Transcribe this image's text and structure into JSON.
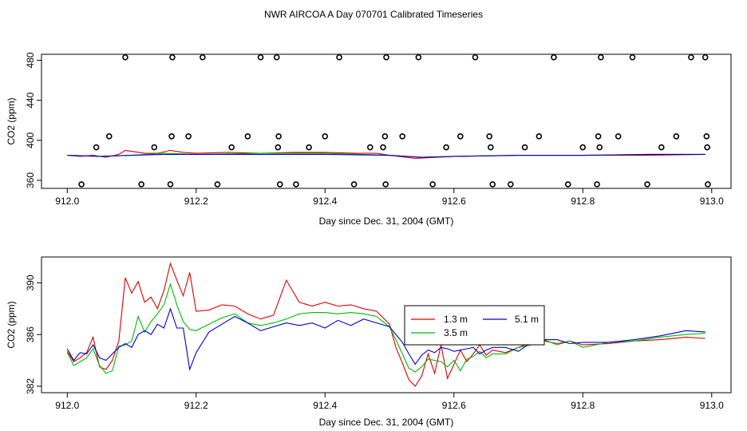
{
  "title": "NWR AIRCOA A  Day 070701  Calibrated Timeseries",
  "colors": {
    "red": "#dd0000",
    "green": "#00bb00",
    "blue": "#0000cc",
    "axis": "#000000"
  },
  "chart_data": [
    {
      "type": "scatter+line",
      "xlabel": "Day since Dec. 31, 2004 (GMT)",
      "ylabel": "CO2 (ppm)",
      "xlim": [
        911.96,
        913.03
      ],
      "ylim": [
        352,
        486
      ],
      "xticks": [
        "912.0",
        "912.2",
        "912.4",
        "912.6",
        "912.8",
        "913.0"
      ],
      "yticks": [
        "360",
        "400",
        "440",
        "480"
      ],
      "points_x": [
        912.022,
        912.045,
        912.065,
        912.09,
        912.115,
        912.135,
        912.16,
        912.162,
        912.163,
        912.188,
        912.21,
        912.233,
        912.255,
        912.28,
        912.3,
        912.325,
        912.327,
        912.328,
        912.33,
        912.355,
        912.375,
        912.4,
        912.422,
        912.445,
        912.47,
        912.49,
        912.493,
        912.494,
        912.495,
        912.52,
        912.545,
        912.567,
        912.588,
        912.61,
        912.633,
        912.655,
        912.657,
        912.66,
        912.688,
        912.71,
        912.732,
        912.755,
        912.777,
        912.8,
        912.822,
        912.824,
        912.826,
        912.828,
        912.855,
        912.877,
        912.9,
        912.922,
        912.945,
        912.968,
        912.99,
        912.992,
        912.993,
        912.994
      ],
      "points_y": [
        356,
        393,
        404,
        483,
        356,
        393,
        356,
        404,
        483,
        404,
        483,
        356,
        393,
        404,
        483,
        483,
        393,
        404,
        356,
        356,
        393,
        404,
        483,
        356,
        393,
        393,
        404,
        356,
        483,
        404,
        483,
        356,
        393,
        404,
        483,
        404,
        393,
        356,
        356,
        393,
        404,
        483,
        356,
        393,
        356,
        404,
        393,
        483,
        404,
        483,
        356,
        393,
        404,
        483,
        483,
        404,
        393,
        356
      ],
      "series": [
        {
          "name": "1.3 m",
          "color": "#dd0000",
          "x": [
            912.0,
            912.02,
            912.04,
            912.06,
            912.08,
            912.09,
            912.1,
            912.12,
            912.14,
            912.16,
            912.18,
            912.2,
            912.25,
            912.3,
            912.35,
            912.4,
            912.45,
            912.48,
            912.5,
            912.54,
            912.6,
            912.7,
            912.8,
            912.9,
            912.99
          ],
          "values": [
            385,
            384,
            385,
            383,
            386,
            390,
            389,
            387,
            387,
            390,
            388,
            387,
            388,
            387,
            388,
            388,
            387,
            387,
            385,
            382,
            384,
            385,
            385,
            385,
            386
          ]
        },
        {
          "name": "3.5 m",
          "color": "#00bb00",
          "x": [
            912.0,
            912.05,
            912.1,
            912.15,
            912.2,
            912.3,
            912.4,
            912.5,
            912.55,
            912.6,
            912.7,
            912.8,
            912.9,
            912.99
          ],
          "values": [
            385,
            384,
            385,
            387,
            386,
            387,
            387,
            385,
            383,
            384,
            385,
            385,
            386,
            386
          ]
        },
        {
          "name": "5.1 m",
          "color": "#0000cc",
          "x": [
            912.0,
            912.05,
            912.1,
            912.15,
            912.2,
            912.3,
            912.4,
            912.5,
            912.55,
            912.6,
            912.7,
            912.8,
            912.9,
            912.99
          ],
          "values": [
            385,
            384,
            385,
            386,
            386,
            386,
            386,
            385,
            383,
            384,
            385,
            385,
            386,
            386
          ]
        }
      ]
    },
    {
      "type": "line",
      "xlabel": "Day since Dec. 31, 2004 (GMT)",
      "ylabel": "CO2 (ppm)",
      "xlim": [
        911.96,
        913.03
      ],
      "ylim": [
        381.5,
        392.0
      ],
      "xticks": [
        "912.0",
        "912.2",
        "912.4",
        "912.6",
        "912.8",
        "913.0"
      ],
      "yticks": [
        "382",
        "386",
        "390"
      ],
      "legend": "center",
      "series": [
        {
          "name": "1.3 m",
          "color": "#dd0000",
          "x": [
            912.0,
            912.01,
            912.02,
            912.03,
            912.04,
            912.05,
            912.06,
            912.07,
            912.08,
            912.09,
            912.1,
            912.11,
            912.12,
            912.13,
            912.14,
            912.15,
            912.16,
            912.17,
            912.18,
            912.19,
            912.2,
            912.22,
            912.24,
            912.26,
            912.28,
            912.3,
            912.32,
            912.34,
            912.36,
            912.38,
            912.4,
            912.42,
            912.44,
            912.46,
            912.48,
            912.5,
            912.51,
            912.52,
            912.53,
            912.54,
            912.55,
            912.56,
            912.57,
            912.58,
            912.59,
            912.6,
            912.61,
            912.62,
            912.63,
            912.64,
            912.65,
            912.66,
            912.68,
            912.7,
            912.72,
            912.74,
            912.76,
            912.78,
            912.8,
            912.84,
            912.88,
            912.92,
            912.96,
            912.99
          ],
          "values": [
            384.7,
            383.9,
            384.2,
            384.6,
            385.8,
            383.5,
            383.3,
            384.0,
            385.5,
            390.4,
            389.2,
            390.1,
            388.5,
            388.9,
            388.0,
            389.4,
            391.5,
            390.2,
            389.0,
            390.8,
            387.8,
            387.9,
            388.3,
            388.2,
            387.6,
            387.2,
            387.5,
            390.2,
            388.5,
            388.2,
            388.5,
            388.2,
            388.3,
            388.0,
            387.8,
            386.8,
            385.0,
            383.8,
            382.5,
            382.0,
            382.8,
            384.5,
            383.0,
            385.2,
            382.6,
            383.7,
            384.8,
            383.9,
            384.5,
            385.2,
            384.4,
            384.8,
            384.6,
            385.0,
            385.4,
            385.5,
            385.3,
            385.5,
            385.2,
            385.3,
            385.5,
            385.6,
            385.8,
            385.7
          ]
        },
        {
          "name": "3.5 m",
          "color": "#00bb00",
          "x": [
            912.0,
            912.01,
            912.02,
            912.03,
            912.04,
            912.05,
            912.06,
            912.07,
            912.08,
            912.09,
            912.1,
            912.11,
            912.12,
            912.13,
            912.14,
            912.15,
            912.16,
            912.17,
            912.18,
            912.19,
            912.2,
            912.22,
            912.24,
            912.26,
            912.28,
            912.3,
            912.32,
            912.34,
            912.36,
            912.38,
            912.4,
            912.42,
            912.44,
            912.46,
            912.48,
            912.5,
            912.51,
            912.52,
            912.53,
            912.54,
            912.55,
            912.56,
            912.57,
            912.58,
            912.59,
            912.6,
            912.61,
            912.62,
            912.63,
            912.64,
            912.65,
            912.66,
            912.68,
            912.7,
            912.72,
            912.74,
            912.76,
            912.78,
            912.8,
            912.84,
            912.88,
            912.92,
            912.96,
            912.99
          ],
          "values": [
            384.6,
            383.6,
            383.9,
            384.2,
            384.9,
            383.6,
            383.0,
            383.2,
            385.1,
            385.2,
            385.5,
            387.4,
            386.2,
            387.0,
            387.6,
            388.3,
            389.9,
            388.3,
            387.0,
            386.4,
            386.3,
            386.8,
            387.3,
            387.6,
            386.9,
            386.7,
            386.9,
            387.2,
            387.6,
            387.7,
            387.7,
            387.6,
            387.7,
            387.6,
            387.4,
            386.6,
            385.6,
            384.5,
            383.4,
            383.1,
            383.5,
            384.1,
            384.0,
            383.9,
            383.5,
            384.0,
            383.2,
            384.1,
            384.3,
            384.7,
            384.2,
            384.5,
            384.5,
            385.0,
            385.2,
            385.6,
            385.2,
            385.5,
            385.0,
            385.4,
            385.5,
            385.8,
            386.0,
            386.1
          ]
        },
        {
          "name": "5.1 m",
          "color": "#0000cc",
          "x": [
            912.0,
            912.01,
            912.02,
            912.03,
            912.04,
            912.05,
            912.06,
            912.07,
            912.08,
            912.09,
            912.1,
            912.11,
            912.12,
            912.13,
            912.14,
            912.15,
            912.16,
            912.17,
            912.18,
            912.19,
            912.2,
            912.22,
            912.24,
            912.26,
            912.28,
            912.3,
            912.32,
            912.34,
            912.36,
            912.38,
            912.4,
            912.42,
            912.44,
            912.46,
            912.48,
            912.5,
            912.51,
            912.52,
            912.53,
            912.54,
            912.55,
            912.56,
            912.57,
            912.58,
            912.59,
            912.6,
            912.61,
            912.62,
            912.63,
            912.64,
            912.65,
            912.66,
            912.68,
            912.7,
            912.72,
            912.74,
            912.76,
            912.78,
            912.8,
            912.84,
            912.88,
            912.92,
            912.96,
            912.99
          ],
          "values": [
            384.9,
            384.0,
            384.6,
            384.5,
            385.2,
            384.2,
            384.0,
            384.5,
            385.0,
            385.3,
            385.0,
            386.0,
            386.3,
            386.0,
            386.8,
            386.5,
            388.0,
            386.5,
            386.5,
            383.3,
            384.6,
            386.2,
            386.8,
            387.4,
            386.9,
            386.3,
            386.6,
            386.9,
            386.7,
            386.9,
            386.5,
            387.1,
            386.7,
            387.2,
            386.9,
            386.6,
            386.0,
            385.4,
            384.5,
            383.7,
            384.4,
            384.8,
            384.6,
            385.0,
            384.9,
            384.7,
            384.8,
            384.9,
            385.0,
            384.5,
            384.8,
            385.0,
            385.0,
            384.7,
            385.4,
            385.6,
            385.6,
            385.3,
            385.4,
            385.4,
            385.6,
            385.9,
            386.3,
            386.2
          ]
        }
      ]
    }
  ]
}
